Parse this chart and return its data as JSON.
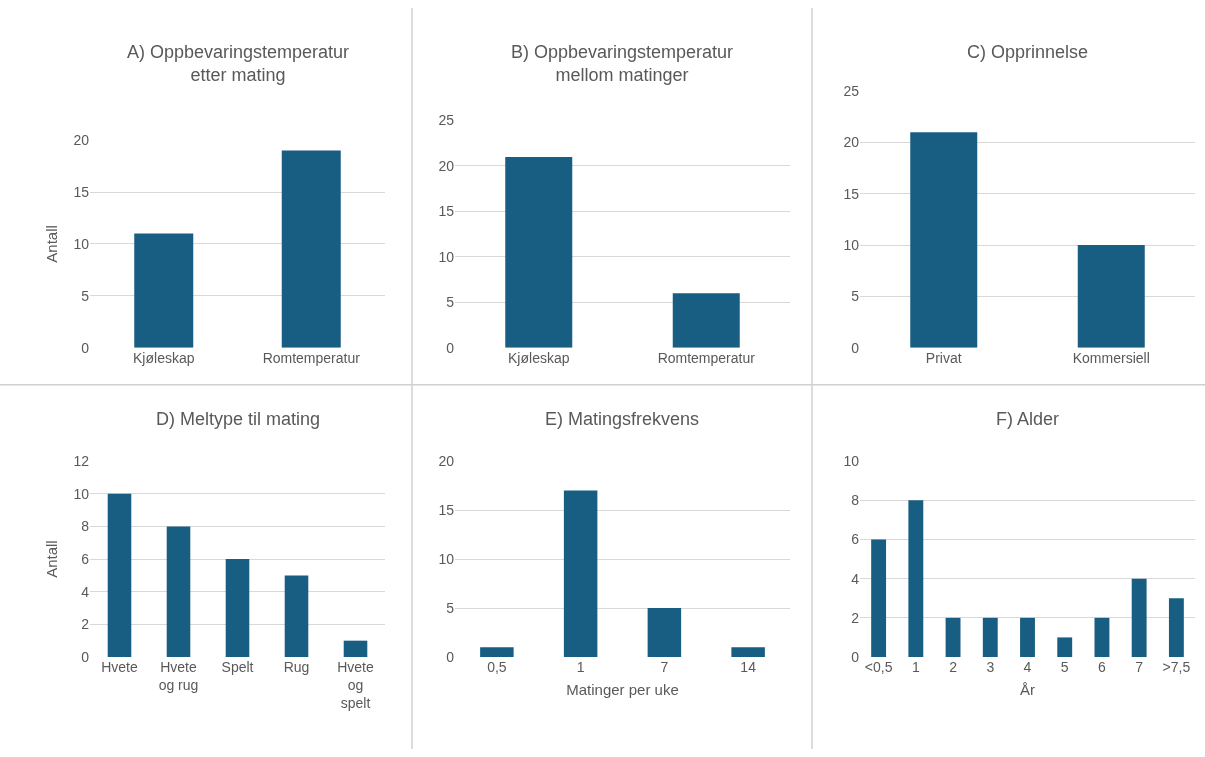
{
  "chart_data": [
    {
      "type": "bar",
      "title": "A) Oppbevaringstemperatur\netter mating",
      "ylabel": "Antall",
      "categories": [
        "Kjøleskap",
        "Romtemperatur"
      ],
      "values": [
        11,
        19
      ],
      "color": "#175e82",
      "ylim": [
        0,
        20
      ],
      "yticks": [
        0,
        5,
        10,
        15,
        20
      ],
      "grid": "y"
    },
    {
      "type": "bar",
      "title": "B) Oppbevaringstemperatur\nmellom matinger",
      "categories": [
        "Kjøleskap",
        "Romtemperatur"
      ],
      "values": [
        21,
        6
      ],
      "color": "#175e82",
      "ylim": [
        0,
        25
      ],
      "yticks": [
        0,
        5,
        10,
        15,
        20,
        25
      ],
      "grid": "y"
    },
    {
      "type": "bar",
      "title": "C) Opprinnelse",
      "categories": [
        "Privat",
        "Kommersiell"
      ],
      "values": [
        21,
        10
      ],
      "color": "#175e82",
      "ylim": [
        0,
        25
      ],
      "yticks": [
        0,
        5,
        10,
        15,
        20,
        25
      ],
      "grid": "y"
    },
    {
      "type": "bar",
      "title": "D) Meltype til mating",
      "ylabel": "Antall",
      "categories": [
        "Hvete",
        "Hvete og rug",
        "Spelt",
        "Rug",
        "Hvete og spelt"
      ],
      "values": [
        10,
        8,
        6,
        5,
        1
      ],
      "color": "#175e82",
      "ylim": [
        0,
        12
      ],
      "yticks": [
        0,
        2,
        4,
        6,
        8,
        10,
        12
      ],
      "grid": "y"
    },
    {
      "type": "bar",
      "title": "E) Matingsfrekvens",
      "xlabel": "Matinger per uke",
      "categories": [
        "0,5",
        "1",
        "7",
        "14"
      ],
      "values": [
        1,
        17,
        5,
        1
      ],
      "color": "#175e82",
      "ylim": [
        0,
        20
      ],
      "yticks": [
        0,
        5,
        10,
        15,
        20
      ],
      "grid": "y"
    },
    {
      "type": "bar",
      "title": "F) Alder",
      "xlabel": "År",
      "categories": [
        "<0,5",
        "1",
        "2",
        "3",
        "4",
        "5",
        "6",
        "7",
        ">7,5"
      ],
      "values": [
        6,
        8,
        2,
        2,
        2,
        1,
        2,
        4,
        3
      ],
      "color": "#175e82",
      "ylim": [
        0,
        10
      ],
      "yticks": [
        0,
        2,
        4,
        6,
        8,
        10
      ],
      "grid": "y"
    }
  ]
}
